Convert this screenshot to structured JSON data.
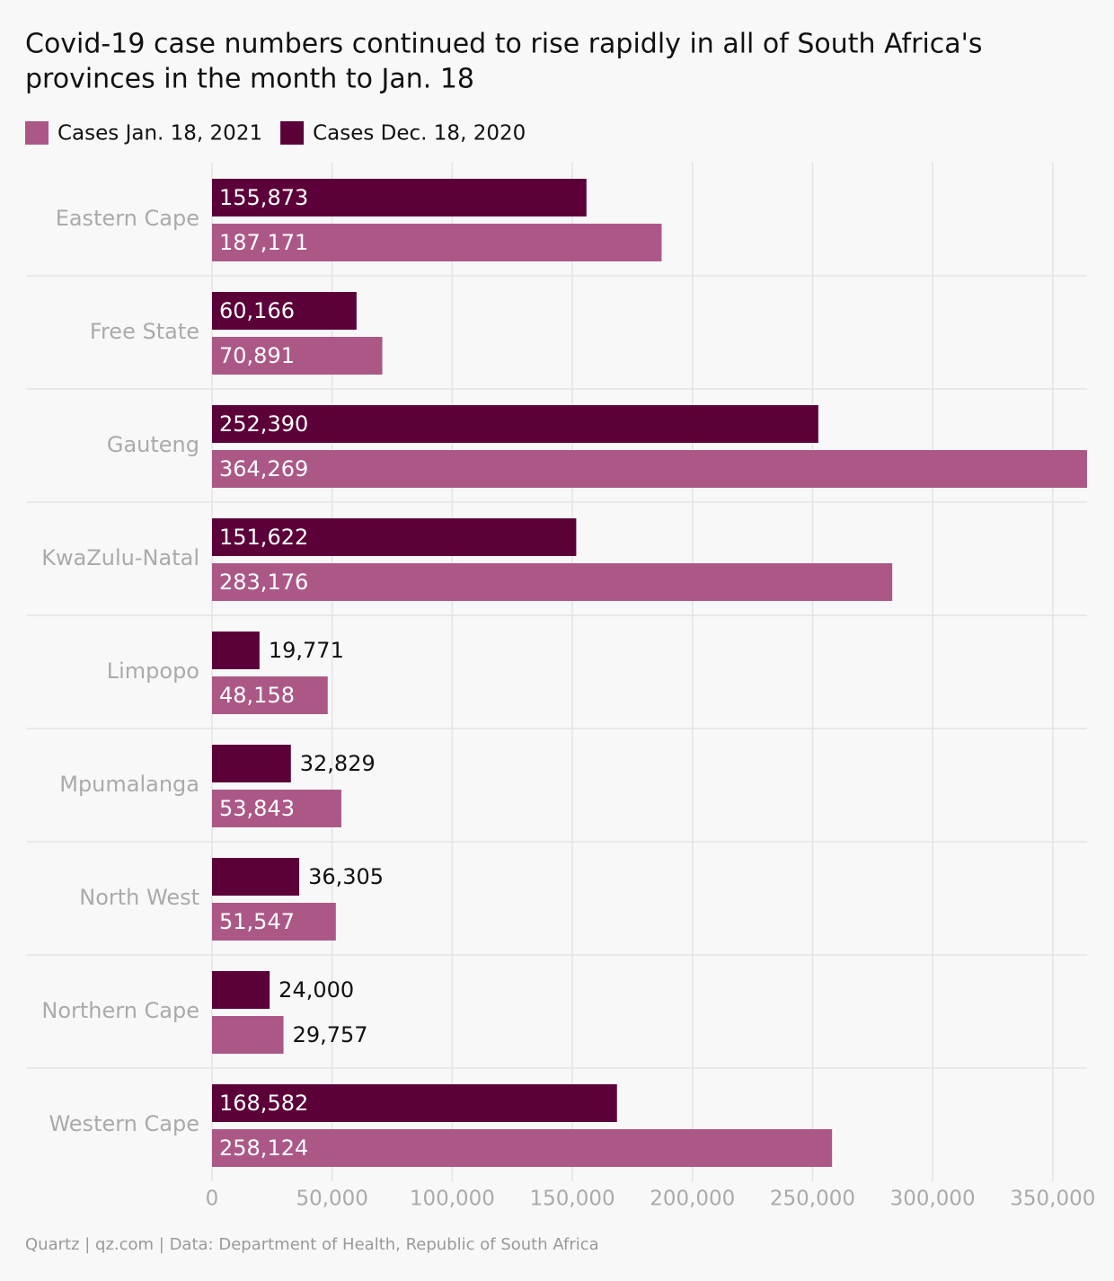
{
  "chart_data": {
    "type": "grouped-hbar",
    "title": [
      "Covid-19 case numbers continued to rise rapidly in all of South Africa's",
      "provinces in the month to Jan. 18"
    ],
    "source": "Quartz | qz.com | Data: Department of Health, Republic of South Africa",
    "categories": [
      "Eastern Cape",
      "Free State",
      "Gauteng",
      "KwaZulu-Natal",
      "Limpopo",
      "Mpumalanga",
      "North West",
      "Northern Cape",
      "Western Cape"
    ],
    "series": [
      {
        "name": "Cases Jan. 18, 2021",
        "color": "#ab5887",
        "values": [
          187171,
          70891,
          364269,
          283176,
          48158,
          53843,
          51547,
          29757,
          258124
        ],
        "value_labels": [
          "187,171",
          "70,891",
          "364,269",
          "283,176",
          "48,158",
          "53,843",
          "51,547",
          "29,757",
          "258,124"
        ]
      },
      {
        "name": "Cases Dec. 18, 2020",
        "color": "#5c0039",
        "values": [
          155873,
          60166,
          252390,
          151622,
          19771,
          32829,
          36305,
          24000,
          168582
        ],
        "value_labels": [
          "155,873",
          "60,166",
          "252,390",
          "151,622",
          "19,771",
          "32,829",
          "36,305",
          "24,000",
          "168,582"
        ]
      }
    ],
    "xlim": [
      0,
      364269
    ],
    "xticks": [
      0,
      {
        "value": 50000,
        "label": "50,000"
      },
      {
        "value": 100000,
        "label": "100,000"
      },
      {
        "value": 150000,
        "label": "150,000"
      },
      {
        "value": 200000,
        "label": "200,000"
      },
      {
        "value": 250000,
        "label": "250,000"
      },
      {
        "value": 300000,
        "label": "300,000"
      },
      {
        "value": 350000,
        "label": "350,000"
      }
    ],
    "grid": true,
    "legend": "top"
  }
}
